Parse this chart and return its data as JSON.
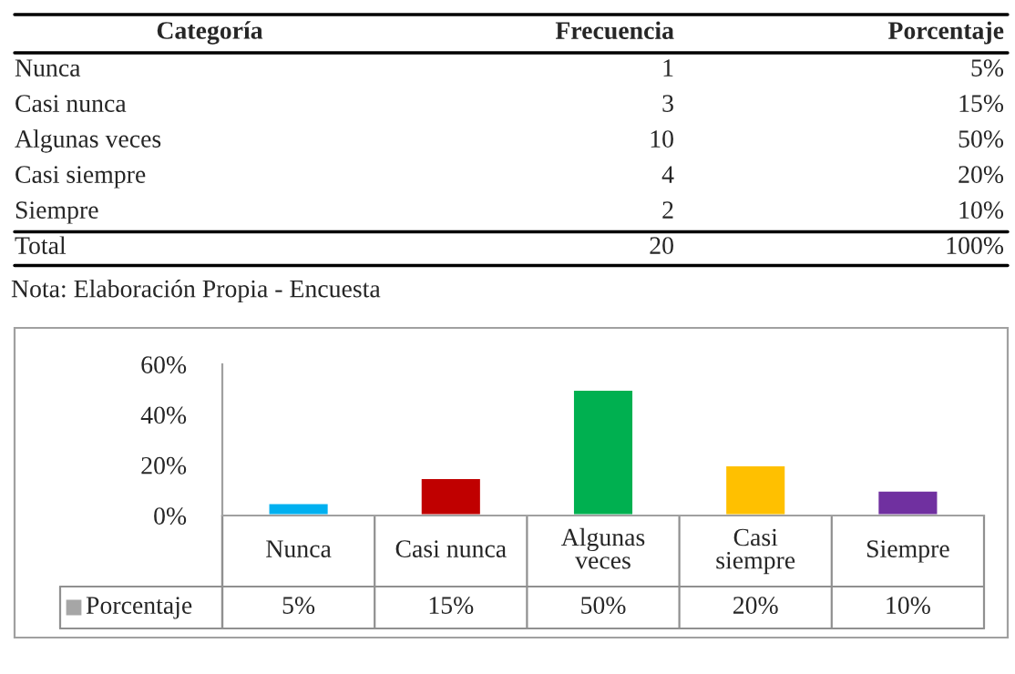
{
  "chart_data": [
    {
      "type": "other",
      "xlabel": "Categoría",
      "categories": [
        "Nunca",
        "Casi nunca",
        "Algunas veces",
        "Casi siempre",
        "Siempre",
        "Total"
      ],
      "series": [
        {
          "name": "Frecuencia",
          "values": [
            1,
            3,
            10,
            4,
            2,
            20
          ],
          "value_labels": [
            "1",
            "3",
            "10",
            "4",
            "2",
            "20"
          ]
        },
        {
          "name": "Porcentaje",
          "values": [
            5,
            15,
            50,
            20,
            10,
            100
          ],
          "value_labels": [
            "5%",
            "15%",
            "50%",
            "20%",
            "10%",
            "100%"
          ]
        }
      ],
      "annotations": [
        "Nota: Elaboración Propia - Encuesta"
      ]
    },
    {
      "type": "bar",
      "categories": [
        "Nunca",
        "Casi nunca",
        "Algunas veces",
        "Casi siempre",
        "Siempre"
      ],
      "series": [
        {
          "name": "Porcentaje",
          "values": [
            5,
            15,
            50,
            20,
            10
          ],
          "value_labels": [
            "5%",
            "15%",
            "50%",
            "20%",
            "10%"
          ]
        }
      ],
      "colors": [
        "#00b0f0",
        "#c00000",
        "#00b050",
        "#ffc000",
        "#7030a0"
      ],
      "ylim": [
        0,
        60
      ],
      "yticks": [
        {
          "value": 0,
          "label": "0%"
        },
        {
          "value": 20,
          "label": "20%"
        },
        {
          "value": 40,
          "label": "40%"
        },
        {
          "value": 60,
          "label": "60%"
        }
      ],
      "grid": false,
      "legend": "bottom"
    }
  ]
}
